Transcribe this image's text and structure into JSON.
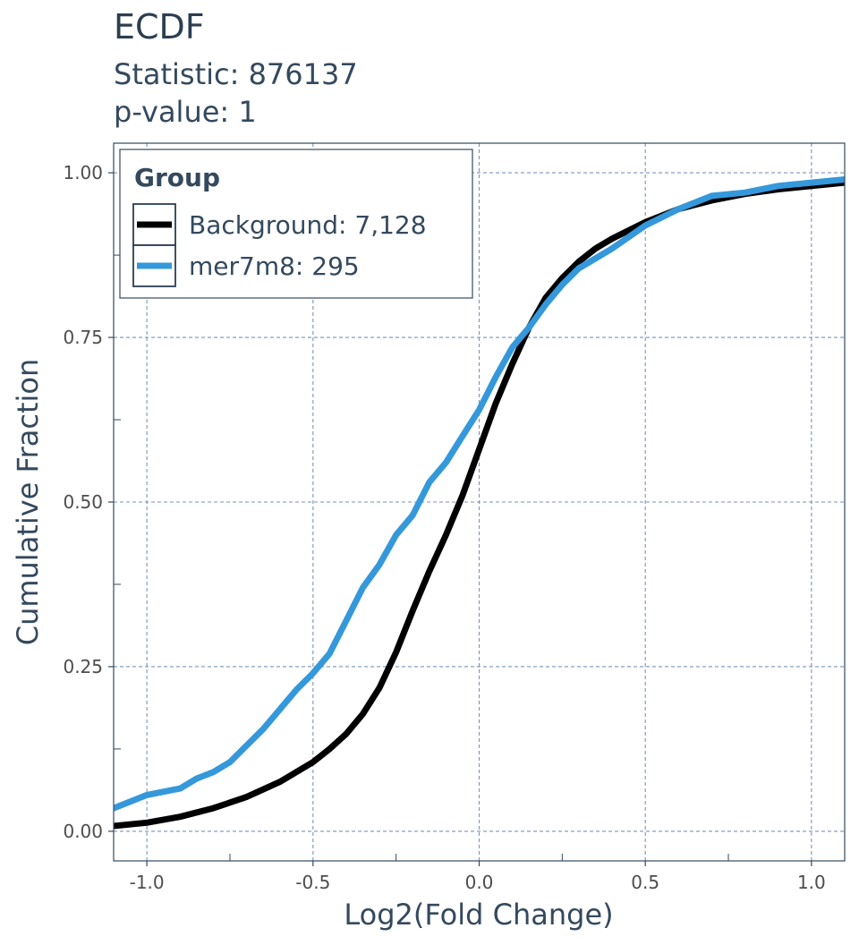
{
  "chart_data": {
    "type": "line",
    "title": "ECDF",
    "subtitle_lines": [
      "Statistic: 876137",
      "p-value: 1"
    ],
    "xlabel": "Log2(Fold Change)",
    "ylabel": "Cumulative Fraction",
    "xlim": [
      -1.1,
      1.1
    ],
    "ylim": [
      -0.045,
      1.045
    ],
    "x_ticks": [
      -1.0,
      -0.5,
      0.0,
      0.5,
      1.0
    ],
    "x_tick_labels": [
      "-1.0",
      "-0.5",
      "0.0",
      "0.5",
      "1.0"
    ],
    "y_ticks": [
      0,
      0.25,
      0.5,
      0.75,
      1.0
    ],
    "y_tick_labels": [
      "0.00",
      "0.25",
      "0.50",
      "0.75",
      "1.00"
    ],
    "grid": true,
    "legend": {
      "title": "Group",
      "placement": "top-left",
      "entries": [
        "Background: 7,128",
        "mer7m8: 295"
      ]
    },
    "series": [
      {
        "name": "Background: 7,128",
        "color": "#000000",
        "x": [
          -1.1,
          -1.0,
          -0.9,
          -0.8,
          -0.7,
          -0.6,
          -0.5,
          -0.45,
          -0.4,
          -0.35,
          -0.3,
          -0.25,
          -0.2,
          -0.15,
          -0.1,
          -0.05,
          0.0,
          0.05,
          0.1,
          0.15,
          0.2,
          0.25,
          0.3,
          0.35,
          0.4,
          0.5,
          0.6,
          0.7,
          0.8,
          0.9,
          1.0,
          1.1
        ],
        "y": [
          0.008,
          0.013,
          0.022,
          0.035,
          0.052,
          0.075,
          0.105,
          0.125,
          0.148,
          0.178,
          0.218,
          0.272,
          0.335,
          0.395,
          0.45,
          0.51,
          0.58,
          0.65,
          0.71,
          0.765,
          0.81,
          0.84,
          0.865,
          0.885,
          0.9,
          0.925,
          0.945,
          0.958,
          0.968,
          0.975,
          0.98,
          0.985
        ]
      },
      {
        "name": "mer7m8: 295",
        "color": "#3498db",
        "x": [
          -1.1,
          -1.05,
          -1.0,
          -0.9,
          -0.85,
          -0.8,
          -0.75,
          -0.7,
          -0.65,
          -0.6,
          -0.55,
          -0.5,
          -0.45,
          -0.4,
          -0.35,
          -0.3,
          -0.25,
          -0.2,
          -0.15,
          -0.1,
          -0.05,
          0.0,
          0.05,
          0.1,
          0.15,
          0.2,
          0.25,
          0.3,
          0.35,
          0.4,
          0.5,
          0.6,
          0.7,
          0.8,
          0.9,
          1.0,
          1.1
        ],
        "y": [
          0.035,
          0.045,
          0.055,
          0.065,
          0.08,
          0.09,
          0.105,
          0.13,
          0.155,
          0.185,
          0.215,
          0.24,
          0.27,
          0.32,
          0.37,
          0.405,
          0.45,
          0.48,
          0.53,
          0.56,
          0.6,
          0.64,
          0.69,
          0.735,
          0.765,
          0.8,
          0.83,
          0.855,
          0.87,
          0.885,
          0.92,
          0.945,
          0.965,
          0.97,
          0.98,
          0.985,
          0.99
        ]
      }
    ]
  }
}
